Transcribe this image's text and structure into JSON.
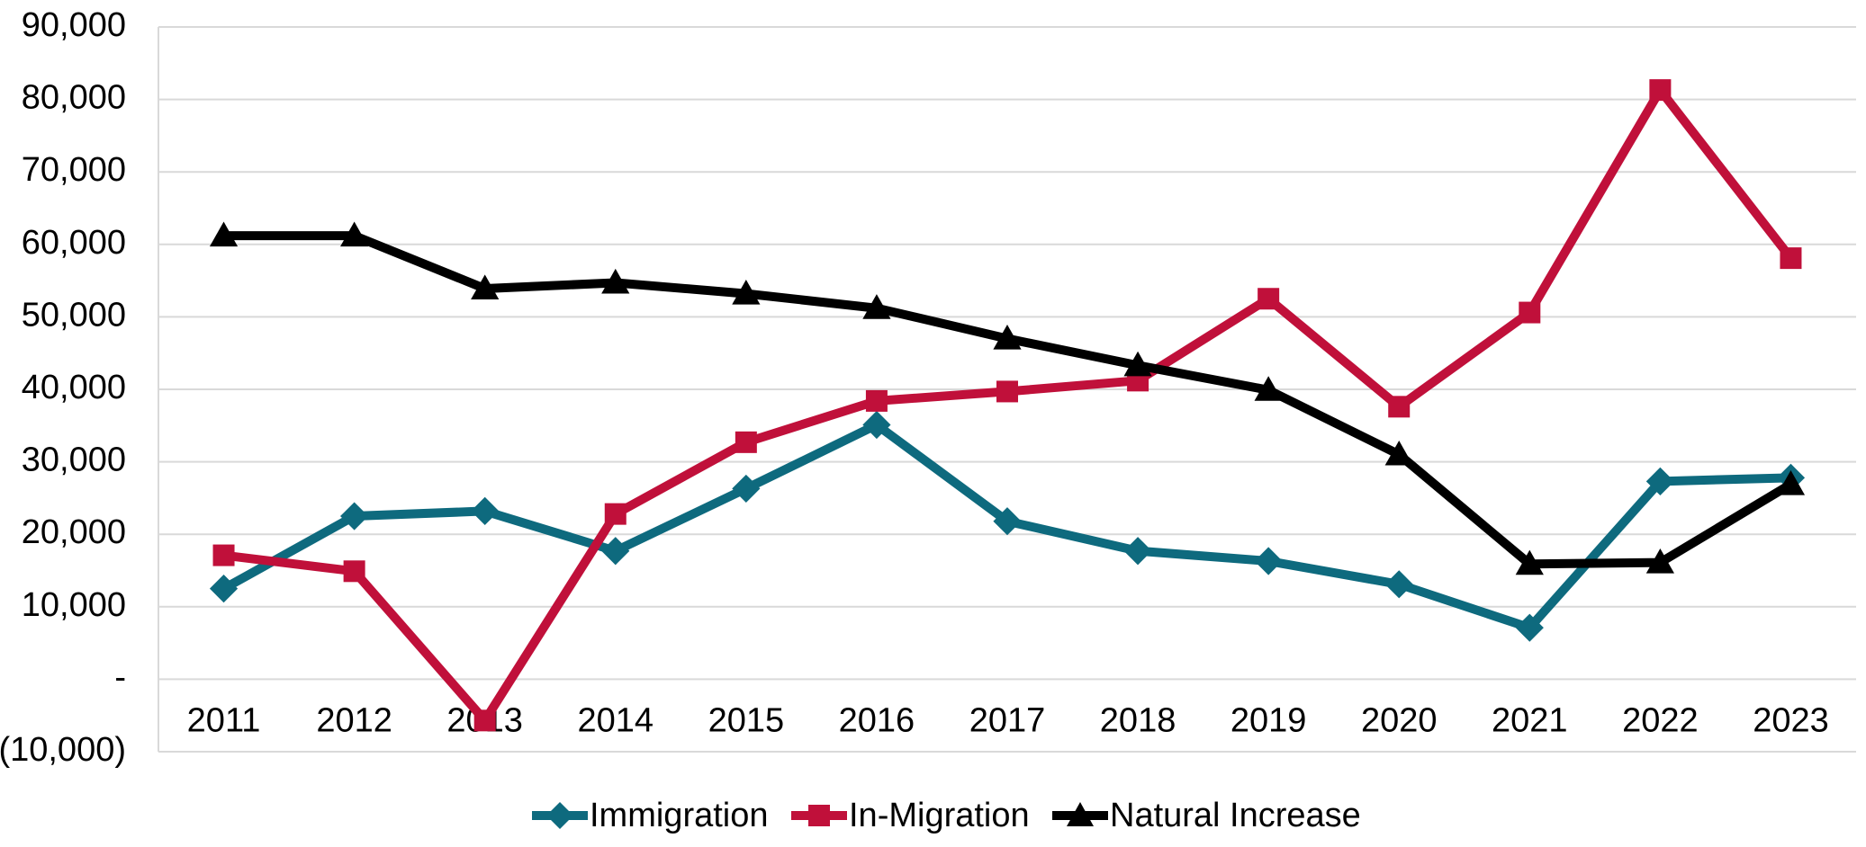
{
  "chart_data": {
    "type": "line",
    "categories": [
      "2011",
      "2012",
      "2013",
      "2014",
      "2015",
      "2016",
      "2017",
      "2018",
      "2019",
      "2020",
      "2021",
      "2022",
      "2023"
    ],
    "series": [
      {
        "name": "Immigration",
        "color": "#0e6a7e",
        "marker": "diamond",
        "values": [
          12500,
          22500,
          23200,
          17700,
          26300,
          35100,
          21800,
          17700,
          16300,
          13100,
          7100,
          27300,
          27800
        ]
      },
      {
        "name": "In-Migration",
        "color": "#c0103a",
        "marker": "square",
        "values": [
          17100,
          14900,
          -5700,
          22800,
          32700,
          38400,
          39700,
          41200,
          52500,
          37600,
          50600,
          81300,
          58100
        ]
      },
      {
        "name": "Natural Increase",
        "color": "#000000",
        "marker": "triangle",
        "values": [
          61200,
          61200,
          53900,
          54700,
          53200,
          51200,
          47000,
          43300,
          39900,
          31000,
          15900,
          16100,
          26900
        ]
      }
    ],
    "ylim": [
      -10000,
      90000
    ],
    "yticks": [
      {
        "value": -10000,
        "label": "(10,000)"
      },
      {
        "value": 0,
        "label": "-"
      },
      {
        "value": 10000,
        "label": "10,000"
      },
      {
        "value": 20000,
        "label": "20,000"
      },
      {
        "value": 30000,
        "label": "30,000"
      },
      {
        "value": 40000,
        "label": "40,000"
      },
      {
        "value": 50000,
        "label": "50,000"
      },
      {
        "value": 60000,
        "label": "60,000"
      },
      {
        "value": 70000,
        "label": "70,000"
      },
      {
        "value": 80000,
        "label": "80,000"
      },
      {
        "value": 90000,
        "label": "90,000"
      }
    ],
    "grid": true,
    "legend": "bottom"
  }
}
